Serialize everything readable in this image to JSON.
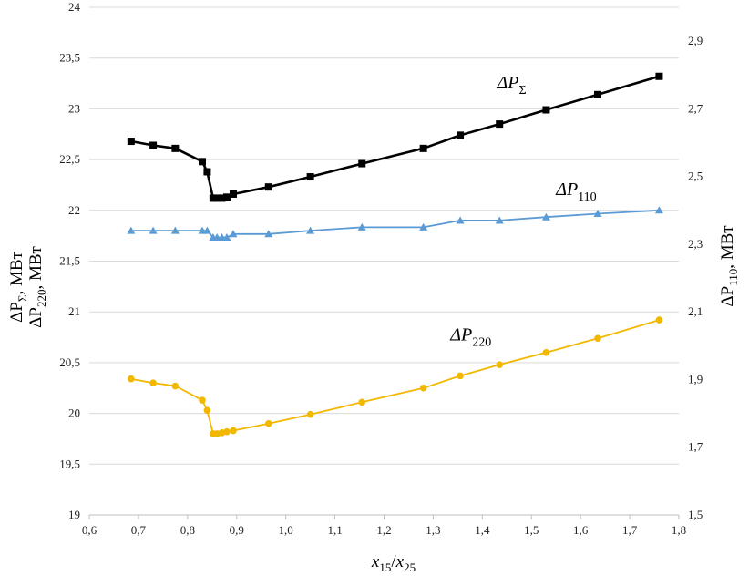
{
  "chart_data": {
    "type": "line",
    "xlabel": {
      "var": "x",
      "sub1": "15",
      "sep": "/",
      "sub2": "25"
    },
    "ylabel_left": {
      "line1": [
        "ΔP",
        "Σ",
        ", МВт"
      ],
      "line2": [
        "ΔP",
        "220",
        ", МВт"
      ]
    },
    "ylabel_right": [
      "ΔP",
      "110",
      ",  МВт"
    ],
    "xlim": [
      0.6,
      1.8
    ],
    "ylim_left": [
      19,
      24
    ],
    "ylim_right": [
      1.5,
      3.0
    ],
    "x_ticks": [
      "0,6",
      "0,7",
      "0,8",
      "0,9",
      "1,0",
      "1,1",
      "1,2",
      "1,3",
      "1,4",
      "1,5",
      "1,6",
      "1,7",
      "1,8"
    ],
    "x_tick_values": [
      0.6,
      0.7,
      0.8,
      0.9,
      1.0,
      1.1,
      1.2,
      1.3,
      1.4,
      1.5,
      1.6,
      1.7,
      1.8
    ],
    "y_left_ticks": [
      "19",
      "19,5",
      "20",
      "20,5",
      "21",
      "21,5",
      "22",
      "22,5",
      "23",
      "23,5",
      "24"
    ],
    "y_left_tick_values": [
      19,
      19.5,
      20,
      20.5,
      21,
      21.5,
      22,
      22.5,
      23,
      23.5,
      24
    ],
    "y_right_ticks": [
      "1,5",
      "1,7",
      "1,9",
      "2,1",
      "2,3",
      "2,5",
      "2,7",
      "2,9"
    ],
    "y_right_tick_values": [
      1.5,
      1.7,
      1.9,
      2.1,
      2.3,
      2.5,
      2.7,
      2.9
    ],
    "series": [
      {
        "name": "ΔPΣ",
        "label": [
          "ΔP",
          "Σ"
        ],
        "axis": "left",
        "marker": "square",
        "color": "#000000",
        "label_at": [
          1.43,
          23.2
        ],
        "x": [
          0.685,
          0.73,
          0.775,
          0.83,
          0.84,
          0.852,
          0.86,
          0.87,
          0.88,
          0.893,
          0.965,
          1.05,
          1.155,
          1.28,
          1.355,
          1.435,
          1.53,
          1.635,
          1.76
        ],
        "y": [
          22.68,
          22.64,
          22.61,
          22.48,
          22.38,
          22.12,
          22.12,
          22.12,
          22.13,
          22.16,
          22.23,
          22.33,
          22.46,
          22.61,
          22.74,
          22.85,
          22.99,
          23.14,
          23.32
        ]
      },
      {
        "name": "ΔP110",
        "label": [
          "ΔP",
          "110"
        ],
        "axis": "right",
        "marker": "triangle",
        "color": "#5b9bd5",
        "label_at": [
          1.55,
          2.445
        ],
        "x": [
          0.685,
          0.73,
          0.775,
          0.83,
          0.84,
          0.852,
          0.86,
          0.87,
          0.88,
          0.893,
          0.965,
          1.05,
          1.155,
          1.28,
          1.355,
          1.435,
          1.53,
          1.635,
          1.76
        ],
        "y": [
          2.34,
          2.34,
          2.34,
          2.34,
          2.34,
          2.32,
          2.32,
          2.32,
          2.32,
          2.33,
          2.33,
          2.34,
          2.35,
          2.35,
          2.37,
          2.37,
          2.38,
          2.39,
          2.4
        ]
      },
      {
        "name": "ΔP220",
        "label": [
          "ΔP",
          "220"
        ],
        "axis": "left",
        "marker": "circle",
        "color": "#f2b800",
        "label_at": [
          1.335,
          20.72
        ],
        "x": [
          0.685,
          0.73,
          0.775,
          0.83,
          0.84,
          0.852,
          0.86,
          0.87,
          0.88,
          0.893,
          0.965,
          1.05,
          1.155,
          1.28,
          1.355,
          1.435,
          1.53,
          1.635,
          1.76
        ],
        "y": [
          20.34,
          20.3,
          20.27,
          20.13,
          20.03,
          19.8,
          19.8,
          19.81,
          19.82,
          19.83,
          19.9,
          19.99,
          20.11,
          20.25,
          20.37,
          20.48,
          20.6,
          20.74,
          20.92
        ]
      }
    ]
  }
}
